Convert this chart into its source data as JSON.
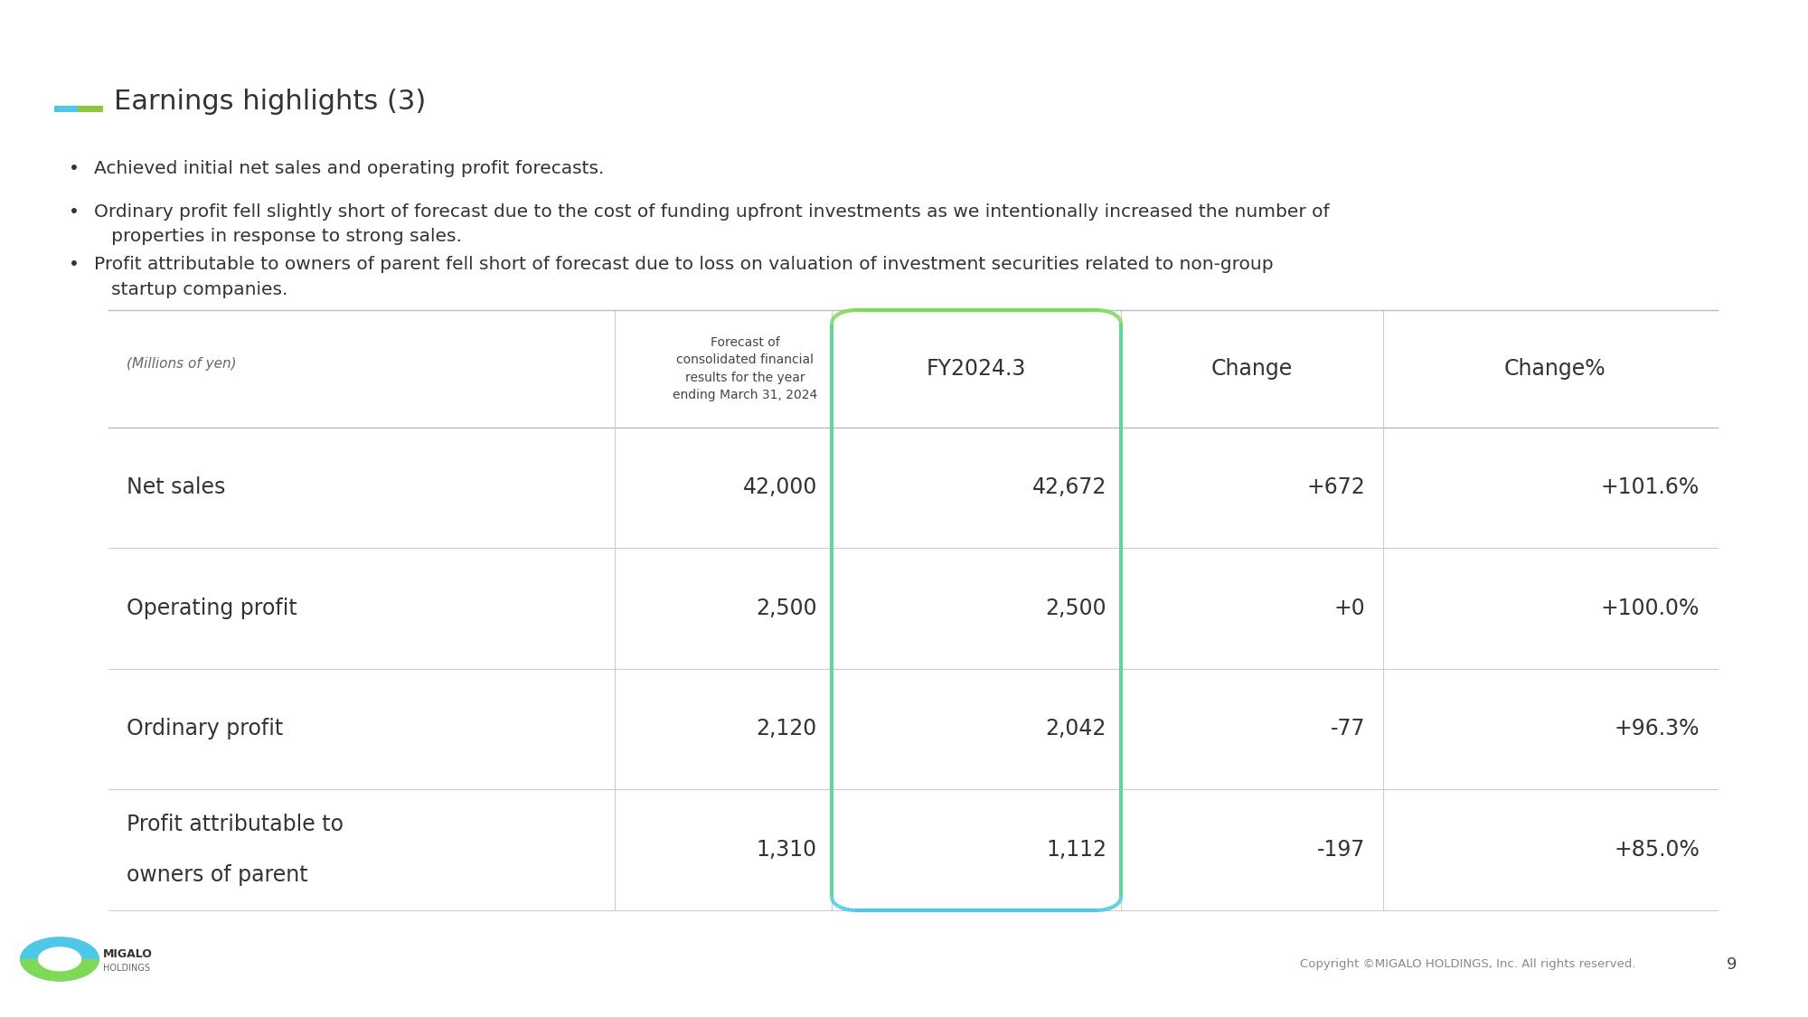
{
  "title": "Earnings highlights (3)",
  "title_accent_color1": "#4FC8E8",
  "title_accent_color2": "#8DC63F",
  "bullets": [
    "Achieved initial net sales and operating profit forecasts.",
    "Ordinary profit fell slightly short of forecast due to the cost of funding upfront investments as we intentionally increased the number of\n   properties in response to strong sales.",
    "Profit attributable to owners of parent fell short of forecast due to loss on valuation of investment securities related to non-group\n   startup companies."
  ],
  "header_col0": "(Millions of yen)",
  "header_col1": "Forecast of\nconsolidated financial\nresults for the year\nending March 31, 2024",
  "header_col2": "FY2024.3",
  "header_col3": "Change",
  "header_col4": "Change%",
  "rows": [
    {
      "label": "Net sales",
      "label2": "",
      "forecast": "42,000",
      "actual": "42,672",
      "change": "+672",
      "change_pct": "+101.6%"
    },
    {
      "label": "Operating profit",
      "label2": "",
      "forecast": "2,500",
      "actual": "2,500",
      "change": "+0",
      "change_pct": "+100.0%"
    },
    {
      "label": "Ordinary profit",
      "label2": "",
      "forecast": "2,120",
      "actual": "2,042",
      "change": "-77",
      "change_pct": "+96.3%"
    },
    {
      "label": "Profit attributable to",
      "label2": "owners of parent",
      "forecast": "1,310",
      "actual": "1,112",
      "change": "-197",
      "change_pct": "+85.0%"
    }
  ],
  "highlight_color_top": "#7ED957",
  "highlight_color_bottom": "#4FC8E8",
  "table_line_color": "#CCCCCC",
  "text_color": "#333333",
  "bg_color": "#FFFFFF",
  "footer_text": "Copyright ©MIGALO HOLDINGS, Inc. All rights reserved.",
  "page_number": "9"
}
